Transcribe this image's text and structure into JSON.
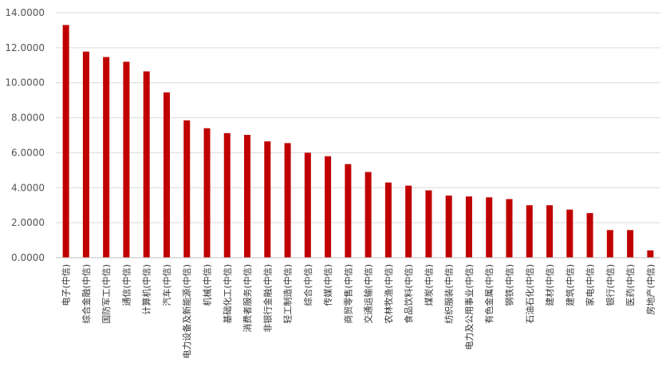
{
  "chart_data": {
    "type": "bar",
    "categories": [
      "电子(中信)",
      "综合金融(中信)",
      "国防军工(中信)",
      "通信(中信)",
      "计算机(中信)",
      "汽车(中信)",
      "电力设备及新能源(中信)",
      "机械(中信)",
      "基础化工(中信)",
      "消费者服务(中信)",
      "非银行金融(中信)",
      "轻工制造(中信)",
      "综合(中信)",
      "传媒(中信)",
      "商贸零售(中信)",
      "交通运输(中信)",
      "农林牧渔(中信)",
      "食品饮料(中信)",
      "煤炭(中信)",
      "纺织服装(中信)",
      "电力及公用事业(中信)",
      "有色金属(中信)",
      "钢铁(中信)",
      "石油石化(中信)",
      "建材(中信)",
      "建筑(中信)",
      "家电(中信)",
      "银行(中信)",
      "医药(中信)",
      "房地产(中信)"
    ],
    "values": [
      13.3,
      11.78,
      11.47,
      11.2,
      10.65,
      9.45,
      7.85,
      7.4,
      7.12,
      7.02,
      6.65,
      6.55,
      6.0,
      5.8,
      5.35,
      4.9,
      4.3,
      4.12,
      3.85,
      3.55,
      3.5,
      3.45,
      3.35,
      3.0,
      3.0,
      2.75,
      2.55,
      1.58,
      1.58,
      0.42
    ],
    "yticks": [
      "0.0000",
      "2.0000",
      "4.0000",
      "6.0000",
      "8.0000",
      "10.0000",
      "12.0000",
      "14.0000"
    ],
    "ylim": [
      0,
      14
    ],
    "grid": true,
    "bar_color": "#c00000",
    "title": "",
    "xlabel": "",
    "ylabel": ""
  }
}
